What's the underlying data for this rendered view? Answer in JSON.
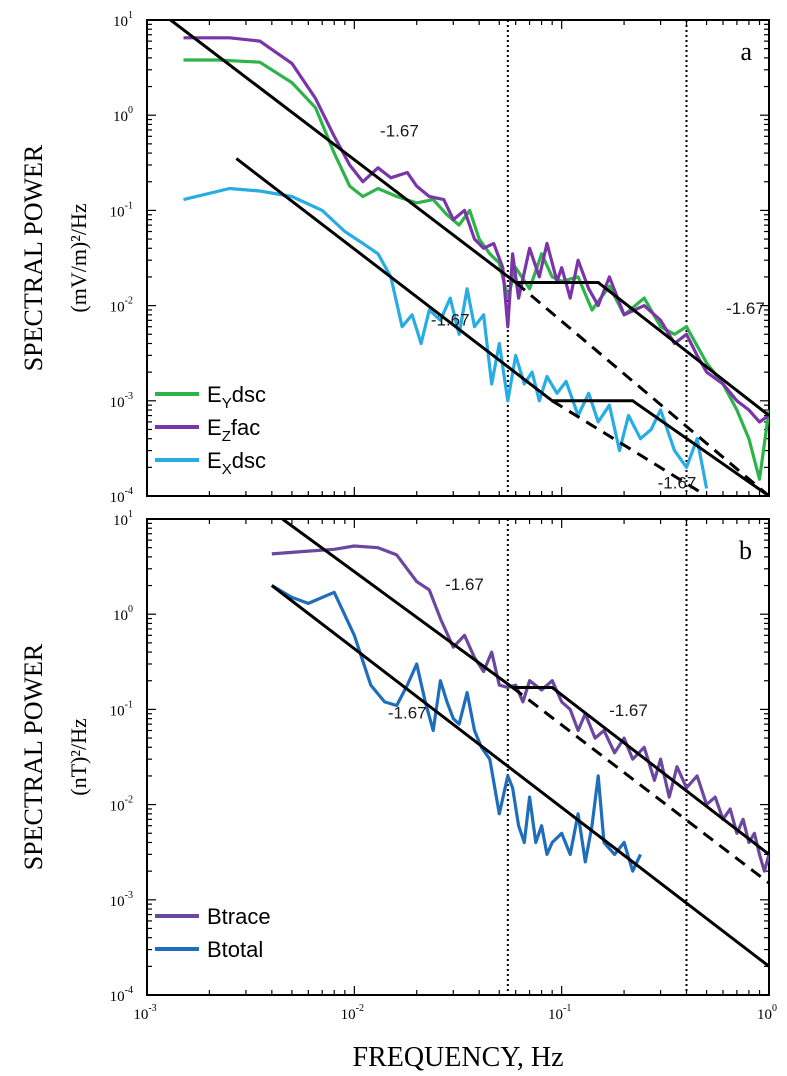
{
  "chart_data": [
    {
      "panel": "a",
      "type": "line",
      "x_scale": "log",
      "y_scale": "log",
      "xlim": [
        0.001,
        1
      ],
      "ylim": [
        0.0001,
        10
      ],
      "ylabel_line1": "SPECTRAL POWER",
      "ylabel_line2": "(mV/m)²/Hz",
      "y_ticks": [
        {
          "base": "10",
          "exp": "1"
        },
        {
          "base": "10",
          "exp": "0"
        },
        {
          "base": "10",
          "exp": "-1"
        },
        {
          "base": "10",
          "exp": "-2"
        },
        {
          "base": "10",
          "exp": "-3"
        },
        {
          "base": "10",
          "exp": "-4"
        }
      ],
      "vertical_lines_hz": [
        0.055,
        0.4
      ],
      "series": [
        {
          "name": "Eydsc",
          "legend_main": "E",
          "legend_sub": "Y",
          "legend_tail": "dsc",
          "color": "#2db34a",
          "x": [
            0.0015,
            0.0022,
            0.0035,
            0.005,
            0.0065,
            0.008,
            0.0095,
            0.011,
            0.013,
            0.016,
            0.02,
            0.024,
            0.028,
            0.032,
            0.036,
            0.04,
            0.045,
            0.05,
            0.055,
            0.06,
            0.07,
            0.08,
            0.09,
            0.1,
            0.12,
            0.14,
            0.17,
            0.2,
            0.25,
            0.3,
            0.35,
            0.4,
            0.5,
            0.6,
            0.7,
            0.8,
            0.9,
            1.0
          ],
          "y": [
            3.8,
            3.8,
            3.6,
            2.2,
            1.2,
            0.4,
            0.18,
            0.14,
            0.17,
            0.14,
            0.12,
            0.13,
            0.09,
            0.07,
            0.1,
            0.05,
            0.035,
            0.028,
            0.012,
            0.025,
            0.015,
            0.035,
            0.02,
            0.018,
            0.02,
            0.009,
            0.016,
            0.008,
            0.012,
            0.006,
            0.005,
            0.006,
            0.0025,
            0.0015,
            0.0008,
            0.0004,
            0.00015,
            0.0008
          ]
        },
        {
          "name": "Ezfac",
          "legend_main": "E",
          "legend_sub": "Z",
          "legend_tail": "fac",
          "color": "#7a35a8",
          "x": [
            0.0015,
            0.0025,
            0.0035,
            0.005,
            0.0065,
            0.008,
            0.0095,
            0.011,
            0.013,
            0.015,
            0.018,
            0.02,
            0.023,
            0.027,
            0.03,
            0.034,
            0.038,
            0.042,
            0.047,
            0.052,
            0.055,
            0.058,
            0.062,
            0.07,
            0.078,
            0.085,
            0.095,
            0.1,
            0.11,
            0.12,
            0.135,
            0.15,
            0.17,
            0.2,
            0.25,
            0.3,
            0.35,
            0.4,
            0.45,
            0.5,
            0.6,
            0.7,
            0.8,
            0.9,
            1.0
          ],
          "y": [
            6.5,
            6.5,
            6,
            3.5,
            1.5,
            0.6,
            0.3,
            0.2,
            0.28,
            0.22,
            0.25,
            0.18,
            0.14,
            0.13,
            0.08,
            0.1,
            0.05,
            0.04,
            0.045,
            0.025,
            0.006,
            0.035,
            0.012,
            0.04,
            0.02,
            0.045,
            0.018,
            0.025,
            0.012,
            0.03,
            0.015,
            0.01,
            0.02,
            0.008,
            0.01,
            0.007,
            0.004,
            0.005,
            0.003,
            0.002,
            0.0015,
            0.001,
            0.0008,
            0.0006,
            0.0007
          ]
        },
        {
          "name": "Exdsc",
          "legend_main": "E",
          "legend_sub": "X",
          "legend_tail": "dsc",
          "color": "#27ace3",
          "x": [
            0.0015,
            0.0025,
            0.0035,
            0.005,
            0.007,
            0.009,
            0.011,
            0.013,
            0.015,
            0.017,
            0.019,
            0.021,
            0.023,
            0.026,
            0.029,
            0.032,
            0.035,
            0.038,
            0.042,
            0.046,
            0.05,
            0.055,
            0.06,
            0.066,
            0.072,
            0.078,
            0.085,
            0.095,
            0.105,
            0.12,
            0.135,
            0.15,
            0.17,
            0.19,
            0.21,
            0.24,
            0.27,
            0.3,
            0.35,
            0.4,
            0.45,
            0.5
          ],
          "y": [
            0.13,
            0.17,
            0.16,
            0.14,
            0.1,
            0.06,
            0.045,
            0.035,
            0.02,
            0.006,
            0.008,
            0.004,
            0.009,
            0.007,
            0.012,
            0.005,
            0.015,
            0.006,
            0.008,
            0.0015,
            0.004,
            0.001,
            0.003,
            0.0015,
            0.002,
            0.001,
            0.0018,
            0.0012,
            0.0016,
            0.0007,
            0.0012,
            0.0006,
            0.0009,
            0.0003,
            0.0007,
            0.0004,
            0.0005,
            0.0008,
            0.0003,
            0.0002,
            0.0004,
            0.00012
          ]
        }
      ],
      "reference_lines": [
        {
          "style": "solid",
          "points": [
            [
              0.0013,
              10
            ],
            [
              0.06,
              0.0175
            ],
            [
              0.15,
              0.0175
            ],
            [
              1.0,
              0.0007
            ]
          ]
        },
        {
          "style": "dashed",
          "points": [
            [
              0.06,
              0.0175
            ],
            [
              1.0,
              0.0001
            ]
          ]
        },
        {
          "style": "solid",
          "points": [
            [
              0.0027,
              0.35
            ],
            [
              0.09,
              0.001
            ],
            [
              0.22,
              0.001
            ],
            [
              1.0,
              0.0001
            ]
          ]
        },
        {
          "style": "dashed",
          "points": [
            [
              0.09,
              0.001
            ],
            [
              0.5,
              0.0001
            ]
          ]
        }
      ],
      "slope_labels": [
        {
          "text": "-1.67",
          "x": 0.0165,
          "y": 0.6
        },
        {
          "text": "-1.67",
          "x": 0.029,
          "y": 0.0062
        },
        {
          "text": "-1.67",
          "x": 0.77,
          "y": 0.0082
        },
        {
          "text": "-1.67",
          "x": 0.36,
          "y": 0.00012
        }
      ]
    },
    {
      "panel": "b",
      "type": "line",
      "x_scale": "log",
      "y_scale": "log",
      "xlim": [
        0.001,
        1
      ],
      "ylim": [
        0.0001,
        10
      ],
      "xlabel": "FREQUENCY, Hz",
      "ylabel_line1": "SPECTRAL POWER",
      "ylabel_line2": "(nT)²/Hz",
      "x_ticks": [
        {
          "base": "10",
          "exp": "-3"
        },
        {
          "base": "10",
          "exp": "-2"
        },
        {
          "base": "10",
          "exp": "-1"
        },
        {
          "base": "10",
          "exp": "0"
        }
      ],
      "y_ticks": [
        {
          "base": "10",
          "exp": "1"
        },
        {
          "base": "10",
          "exp": "0"
        },
        {
          "base": "10",
          "exp": "-1"
        },
        {
          "base": "10",
          "exp": "-2"
        },
        {
          "base": "10",
          "exp": "-3"
        },
        {
          "base": "10",
          "exp": "-4"
        }
      ],
      "vertical_lines_hz": [
        0.055,
        0.4
      ],
      "series": [
        {
          "name": "Btrace",
          "color": "#6c47a0",
          "x": [
            0.004,
            0.006,
            0.008,
            0.01,
            0.013,
            0.016,
            0.02,
            0.023,
            0.026,
            0.03,
            0.034,
            0.038,
            0.042,
            0.046,
            0.05,
            0.055,
            0.06,
            0.065,
            0.07,
            0.08,
            0.09,
            0.1,
            0.11,
            0.12,
            0.13,
            0.145,
            0.16,
            0.18,
            0.2,
            0.22,
            0.25,
            0.28,
            0.3,
            0.33,
            0.36,
            0.4,
            0.45,
            0.5,
            0.55,
            0.6,
            0.65,
            0.7,
            0.75,
            0.8,
            0.85,
            0.9,
            0.95,
            1.0
          ],
          "y": [
            4.3,
            4.6,
            4.8,
            5.2,
            5.0,
            4.2,
            2.2,
            1.8,
            0.9,
            0.45,
            0.6,
            0.35,
            0.25,
            0.4,
            0.18,
            0.17,
            0.18,
            0.12,
            0.2,
            0.16,
            0.2,
            0.12,
            0.1,
            0.06,
            0.09,
            0.05,
            0.06,
            0.035,
            0.05,
            0.03,
            0.04,
            0.018,
            0.03,
            0.012,
            0.025,
            0.015,
            0.02,
            0.01,
            0.012,
            0.007,
            0.009,
            0.005,
            0.007,
            0.004,
            0.005,
            0.003,
            0.002,
            0.003
          ]
        },
        {
          "name": "Btotal",
          "color": "#1f6dbb",
          "x": [
            0.004,
            0.005,
            0.006,
            0.008,
            0.01,
            0.012,
            0.014,
            0.016,
            0.018,
            0.02,
            0.022,
            0.024,
            0.026,
            0.028,
            0.03,
            0.032,
            0.035,
            0.038,
            0.041,
            0.045,
            0.05,
            0.055,
            0.058,
            0.062,
            0.066,
            0.07,
            0.075,
            0.08,
            0.085,
            0.09,
            0.1,
            0.11,
            0.12,
            0.13,
            0.14,
            0.15,
            0.16,
            0.18,
            0.2,
            0.22,
            0.24
          ],
          "y": [
            2.0,
            1.5,
            1.3,
            1.7,
            0.6,
            0.18,
            0.12,
            0.11,
            0.18,
            0.3,
            0.12,
            0.06,
            0.2,
            0.12,
            0.08,
            0.07,
            0.15,
            0.06,
            0.04,
            0.03,
            0.008,
            0.02,
            0.015,
            0.006,
            0.004,
            0.012,
            0.004,
            0.006,
            0.003,
            0.004,
            0.005,
            0.003,
            0.008,
            0.0025,
            0.006,
            0.02,
            0.004,
            0.003,
            0.004,
            0.002,
            0.003
          ]
        }
      ],
      "reference_lines": [
        {
          "style": "solid",
          "points": [
            [
              0.0045,
              10
            ],
            [
              0.058,
              0.17
            ],
            [
              0.09,
              0.17
            ],
            [
              1.0,
              0.003
            ]
          ]
        },
        {
          "style": "dashed",
          "points": [
            [
              0.058,
              0.17
            ],
            [
              1.0,
              0.0015
            ]
          ]
        },
        {
          "style": "solid",
          "points": [
            [
              0.004,
              2.0
            ],
            [
              1.0,
              0.0002
            ]
          ]
        }
      ],
      "slope_labels": [
        {
          "text": "-1.67",
          "x": 0.034,
          "y": 1.8
        },
        {
          "text": "-1.67",
          "x": 0.018,
          "y": 0.08
        },
        {
          "text": "-1.67",
          "x": 0.21,
          "y": 0.085
        }
      ]
    }
  ]
}
